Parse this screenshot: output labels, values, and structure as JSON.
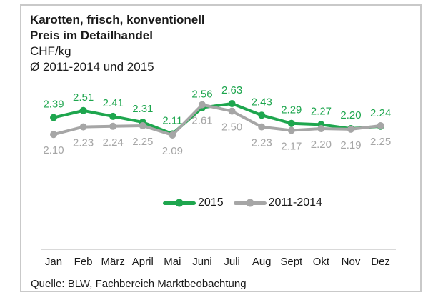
{
  "header": {
    "title_line1": "Karotten, frisch, konventionell",
    "title_line2": "Preis im Detailhandel",
    "unit_label": "CHF/kg",
    "subtitle": "Ø 2011-2014 und 2015"
  },
  "chart_data": {
    "type": "line",
    "title": "Karotten, frisch, konventionell – Preis im Detailhandel",
    "ylabel": "CHF/kg",
    "xlabel": "",
    "ylim": [
      2.0,
      2.7
    ],
    "grid": false,
    "legend_position": "bottom-center",
    "data_labels": true,
    "categories": [
      "Jan",
      "Feb",
      "März",
      "April",
      "Mai",
      "Juni",
      "Juli",
      "Aug",
      "Sept",
      "Okt",
      "Nov",
      "Dez"
    ],
    "series": [
      {
        "name": "2015",
        "color": "#1ea64e",
        "values": [
          2.39,
          2.51,
          2.41,
          2.31,
          2.11,
          2.56,
          2.63,
          2.43,
          2.29,
          2.27,
          2.2,
          2.24
        ]
      },
      {
        "name": "2011-2014",
        "color": "#a6a6a6",
        "values": [
          2.1,
          2.23,
          2.24,
          2.25,
          2.09,
          2.61,
          2.5,
          2.23,
          2.17,
          2.2,
          2.19,
          2.25
        ]
      }
    ],
    "axis_line_color": "#d9d9d9"
  },
  "legend": {
    "items": [
      {
        "label": "2015",
        "color": "#1ea64e"
      },
      {
        "label": "2011-2014",
        "color": "#a6a6a6"
      }
    ]
  },
  "footer": {
    "source": "Quelle: BLW, Fachbereich Marktbeobachtung"
  }
}
